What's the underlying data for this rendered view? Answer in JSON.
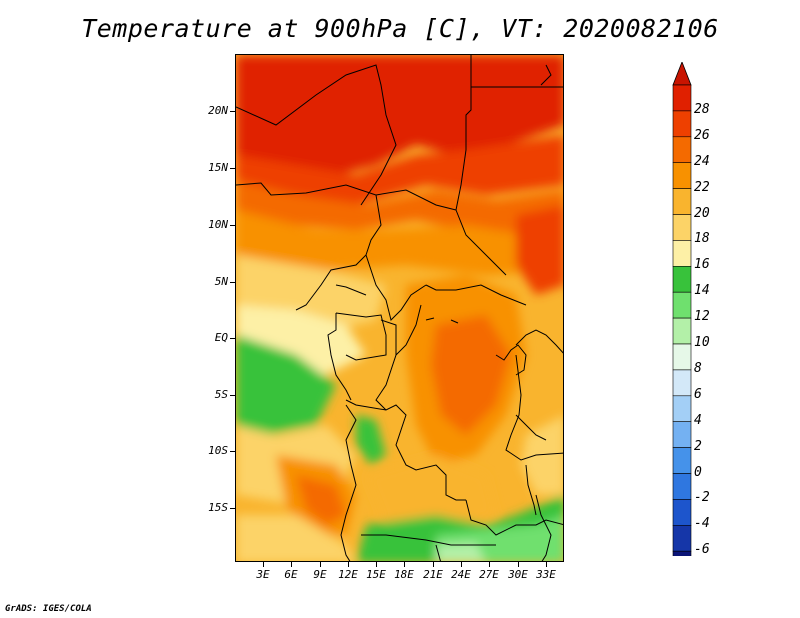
{
  "title": "Temperature at 900hPa [C], VT: 2020082106",
  "footer": "GrADS: IGES/COLA",
  "map": {
    "lon_ticks": [
      "3E",
      "6E",
      "9E",
      "12E",
      "15E",
      "18E",
      "21E",
      "24E",
      "27E",
      "30E",
      "33E"
    ],
    "lat_ticks": [
      "20N",
      "15N",
      "10N",
      "5N",
      "EQ",
      "5S",
      "10S",
      "15S"
    ]
  },
  "colorbar": {
    "labels": [
      "28",
      "26",
      "24",
      "22",
      "20",
      "18",
      "16",
      "14",
      "12",
      "10",
      "8",
      "6",
      "4",
      "2",
      "0",
      "-2",
      "-4",
      "-6"
    ],
    "colors": [
      "#e02000",
      "#ee4000",
      "#f46a00",
      "#f89100",
      "#f9b42e",
      "#fcd367",
      "#fdf0a6",
      "#38c23b",
      "#6fe06e",
      "#b3f0a8",
      "#e6f8e8",
      "#d3e8f8",
      "#a3cff6",
      "#74b1f2",
      "#4592ea",
      "#2f77e0",
      "#1d55cc",
      "#1536a8",
      "#0b1477"
    ],
    "top_tip_color": "#c81400",
    "bottom_tip_color": "#d8d8f4"
  }
}
